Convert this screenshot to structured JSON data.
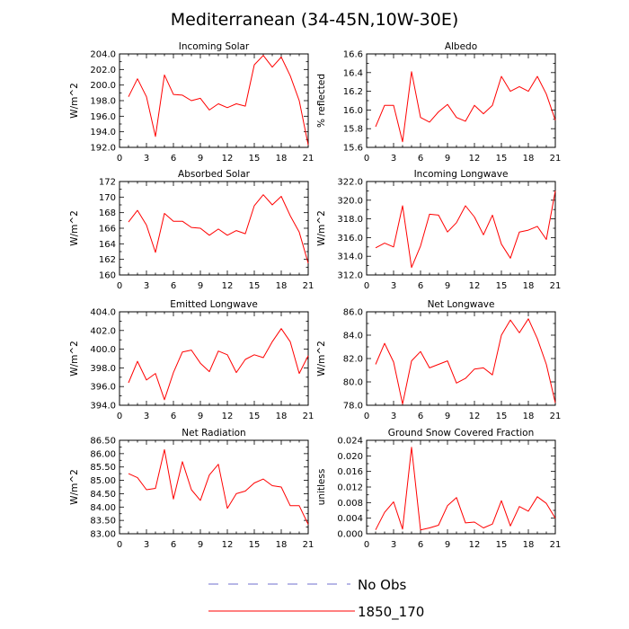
{
  "figure": {
    "title": "Mediterranean (34-45N,10W-30E)",
    "legend": [
      {
        "label": "No Obs",
        "color": "#6f6fcf",
        "dash": true
      },
      {
        "label": "1850_170",
        "color": "#ff0000",
        "dash": false
      }
    ]
  },
  "chart_data": [
    {
      "type": "line",
      "title": "Incoming Solar",
      "ylabel": "W/m^2",
      "xlim": [
        0,
        21
      ],
      "ylim": [
        192,
        204
      ],
      "xticks": [
        "0",
        "3",
        "6",
        "9",
        "12",
        "15",
        "18",
        "21"
      ],
      "yticks": [
        "192.0",
        "194.0",
        "196.0",
        "198.0",
        "200.0",
        "202.0",
        "204.0"
      ],
      "series": [
        {
          "name": "1850_170",
          "color": "#ff0000",
          "x": [
            1,
            2,
            3,
            4,
            5,
            6,
            7,
            8,
            9,
            10,
            11,
            12,
            13,
            14,
            15,
            16,
            17,
            18,
            19,
            20,
            21
          ],
          "y": [
            198.5,
            200.8,
            198.5,
            193.4,
            201.3,
            198.8,
            198.7,
            198.0,
            198.3,
            196.8,
            197.6,
            197.1,
            197.6,
            197.3,
            202.6,
            203.8,
            202.3,
            203.6,
            201.2,
            198.0,
            192.3
          ]
        }
      ]
    },
    {
      "type": "line",
      "title": "Albedo",
      "ylabel": "% reflected",
      "xlim": [
        0,
        21
      ],
      "ylim": [
        15.6,
        16.6
      ],
      "xticks": [
        "0",
        "3",
        "6",
        "9",
        "12",
        "15",
        "18",
        "21"
      ],
      "yticks": [
        "15.6",
        "15.8",
        "16.0",
        "16.2",
        "16.4",
        "16.6"
      ],
      "series": [
        {
          "name": "1850_170",
          "color": "#ff0000",
          "x": [
            1,
            2,
            3,
            4,
            5,
            6,
            7,
            8,
            9,
            10,
            11,
            12,
            13,
            14,
            15,
            16,
            17,
            18,
            19,
            20,
            21
          ],
          "y": [
            15.82,
            16.05,
            16.05,
            15.66,
            16.41,
            15.92,
            15.87,
            15.98,
            16.06,
            15.92,
            15.88,
            16.05,
            15.96,
            16.05,
            16.36,
            16.2,
            16.25,
            16.2,
            16.36,
            16.17,
            15.89
          ]
        }
      ]
    },
    {
      "type": "line",
      "title": "Absorbed Solar",
      "ylabel": "W/m^2",
      "xlim": [
        0,
        21
      ],
      "ylim": [
        160,
        172
      ],
      "xticks": [
        "0",
        "3",
        "6",
        "9",
        "12",
        "15",
        "18",
        "21"
      ],
      "yticks": [
        "160",
        "162",
        "164",
        "166",
        "168",
        "170",
        "172"
      ],
      "series": [
        {
          "name": "1850_170",
          "color": "#ff0000",
          "x": [
            1,
            2,
            3,
            4,
            5,
            6,
            7,
            8,
            9,
            10,
            11,
            12,
            13,
            14,
            15,
            16,
            17,
            18,
            19,
            20,
            21
          ],
          "y": [
            166.8,
            168.3,
            166.4,
            162.9,
            167.9,
            166.9,
            166.9,
            166.1,
            166.0,
            165.1,
            165.9,
            165.1,
            165.7,
            165.3,
            168.9,
            170.3,
            169.0,
            170.1,
            167.6,
            165.5,
            161.5
          ]
        }
      ]
    },
    {
      "type": "line",
      "title": "Incoming Longwave",
      "ylabel": "W/m^2",
      "xlim": [
        0,
        21
      ],
      "ylim": [
        312,
        322
      ],
      "xticks": [
        "0",
        "3",
        "6",
        "9",
        "12",
        "15",
        "18",
        "21"
      ],
      "yticks": [
        "312.0",
        "314.0",
        "316.0",
        "318.0",
        "320.0",
        "322.0"
      ],
      "series": [
        {
          "name": "1850_170",
          "color": "#ff0000",
          "x": [
            1,
            2,
            3,
            4,
            5,
            6,
            7,
            8,
            9,
            10,
            11,
            12,
            13,
            14,
            15,
            16,
            17,
            18,
            19,
            20,
            21
          ],
          "y": [
            314.9,
            315.4,
            315.0,
            319.4,
            312.8,
            315.1,
            318.5,
            318.4,
            316.6,
            317.6,
            319.4,
            318.2,
            316.3,
            318.4,
            315.3,
            313.8,
            316.6,
            316.8,
            317.2,
            315.8,
            321.0
          ]
        }
      ]
    },
    {
      "type": "line",
      "title": "Emitted Longwave",
      "ylabel": "W/m^2",
      "xlim": [
        0,
        21
      ],
      "ylim": [
        394,
        404
      ],
      "xticks": [
        "0",
        "3",
        "6",
        "9",
        "12",
        "15",
        "18",
        "21"
      ],
      "yticks": [
        "394.0",
        "396.0",
        "398.0",
        "400.0",
        "402.0",
        "404.0"
      ],
      "series": [
        {
          "name": "1850_170",
          "color": "#ff0000",
          "x": [
            1,
            2,
            3,
            4,
            5,
            6,
            7,
            8,
            9,
            10,
            11,
            12,
            13,
            14,
            15,
            16,
            17,
            18,
            19,
            20,
            21
          ],
          "y": [
            396.4,
            398.7,
            396.7,
            397.4,
            394.6,
            397.5,
            399.7,
            399.9,
            398.5,
            397.6,
            399.8,
            399.4,
            397.5,
            398.9,
            399.4,
            399.1,
            400.8,
            402.2,
            400.8,
            397.4,
            399.3
          ]
        }
      ]
    },
    {
      "type": "line",
      "title": "Net Longwave",
      "ylabel": "W/m^2",
      "xlim": [
        0,
        21
      ],
      "ylim": [
        78,
        86
      ],
      "xticks": [
        "0",
        "3",
        "6",
        "9",
        "12",
        "15",
        "18",
        "21"
      ],
      "yticks": [
        "78.0",
        "80.0",
        "82.0",
        "84.0",
        "86.0"
      ],
      "series": [
        {
          "name": "1850_170",
          "color": "#ff0000",
          "x": [
            1,
            2,
            3,
            4,
            5,
            6,
            7,
            8,
            9,
            10,
            11,
            12,
            13,
            14,
            15,
            16,
            17,
            18,
            19,
            20,
            21
          ],
          "y": [
            81.5,
            83.3,
            81.7,
            78.1,
            81.8,
            82.6,
            81.2,
            81.5,
            81.8,
            79.9,
            80.3,
            81.1,
            81.2,
            80.6,
            84.0,
            85.3,
            84.2,
            85.4,
            83.7,
            81.5,
            78.2
          ]
        }
      ]
    },
    {
      "type": "line",
      "title": "Net Radiation",
      "ylabel": "W/m^2",
      "xlim": [
        0,
        21
      ],
      "ylim": [
        83,
        86.5
      ],
      "xticks": [
        "0",
        "3",
        "6",
        "9",
        "12",
        "15",
        "18",
        "21"
      ],
      "yticks": [
        "83.00",
        "83.50",
        "84.00",
        "84.50",
        "85.00",
        "85.50",
        "86.00",
        "86.50"
      ],
      "series": [
        {
          "name": "1850_170",
          "color": "#ff0000",
          "x": [
            1,
            2,
            3,
            4,
            5,
            6,
            7,
            8,
            9,
            10,
            11,
            12,
            13,
            14,
            15,
            16,
            17,
            18,
            19,
            20,
            21
          ],
          "y": [
            85.25,
            85.1,
            84.65,
            84.7,
            86.15,
            84.3,
            85.7,
            84.65,
            84.25,
            85.2,
            85.6,
            83.95,
            84.5,
            84.6,
            84.9,
            85.05,
            84.8,
            84.75,
            84.05,
            84.05,
            83.35
          ]
        }
      ]
    },
    {
      "type": "line",
      "title": "Ground Snow Covered Fraction",
      "ylabel": "unitless",
      "xlim": [
        0,
        21
      ],
      "ylim": [
        0,
        0.024
      ],
      "xticks": [
        "0",
        "3",
        "6",
        "9",
        "12",
        "15",
        "18",
        "21"
      ],
      "yticks": [
        "0.000",
        "0.004",
        "0.008",
        "0.012",
        "0.016",
        "0.020",
        "0.024"
      ],
      "series": [
        {
          "name": "1850_170",
          "color": "#ff0000",
          "x": [
            1,
            2,
            3,
            4,
            5,
            6,
            7,
            8,
            9,
            10,
            11,
            12,
            13,
            14,
            15,
            16,
            17,
            18,
            19,
            20,
            21
          ],
          "y": [
            0.001,
            0.0055,
            0.0082,
            0.0012,
            0.0222,
            0.001,
            0.0015,
            0.0022,
            0.0072,
            0.0093,
            0.0028,
            0.003,
            0.0015,
            0.0025,
            0.0085,
            0.002,
            0.007,
            0.0058,
            0.0095,
            0.0078,
            0.004
          ]
        }
      ]
    }
  ]
}
